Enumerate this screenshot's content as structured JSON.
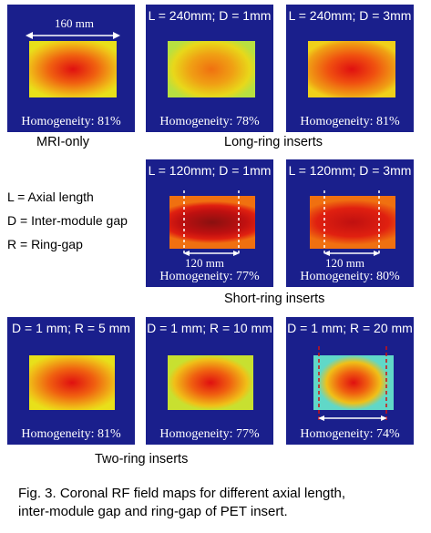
{
  "panels": {
    "mri_only": {
      "title": "",
      "homogeneity": "Homogeneity: 81%",
      "dimension": "160 mm"
    },
    "long_240_d1": {
      "title": "L = 240mm; D = 1mm",
      "homogeneity": "Homogeneity: 78%"
    },
    "long_240_d3": {
      "title": "L = 240mm; D = 3mm",
      "homogeneity": "Homogeneity: 81%"
    },
    "short_120_d1": {
      "title": "L = 120mm; D = 1mm",
      "homogeneity": "Homogeneity: 77%",
      "dimension": "120 mm"
    },
    "short_120_d3": {
      "title": "L = 120mm; D = 3mm",
      "homogeneity": "Homogeneity: 80%",
      "dimension": "120 mm"
    },
    "two_ring_r5": {
      "title": "D = 1 mm; R = 5 mm",
      "homogeneity": "Homogeneity: 81%"
    },
    "two_ring_r10": {
      "title": "D = 1 mm; R = 10 mm",
      "homogeneity": "Homogeneity: 77%"
    },
    "two_ring_r20": {
      "title": "D = 1 mm; R = 20 mm",
      "homogeneity": "Homogeneity: 74%"
    }
  },
  "group_labels": {
    "mri_only": "MRI-only",
    "long_ring": "Long-ring inserts",
    "short_ring": "Short-ring inserts",
    "two_ring": "Two-ring inserts"
  },
  "legend": {
    "axial_length": "L = Axial length",
    "inter_module_gap": "D = Inter-module  gap",
    "ring_gap": "R = Ring-gap"
  },
  "caption": {
    "line1": "Fig. 3. Coronal RF field maps for different axial length,",
    "line2": "inter-module gap and ring-gap of PET insert."
  },
  "colors": {
    "background_field": "#1a1f8c",
    "colormap": [
      "#1a1f8c",
      "#2ad0e0",
      "#f0e51a",
      "#f08a10",
      "#e01010",
      "#8a1010"
    ],
    "dashed_marker_white": "#ffffff",
    "dashed_marker_red": "#d01010"
  }
}
